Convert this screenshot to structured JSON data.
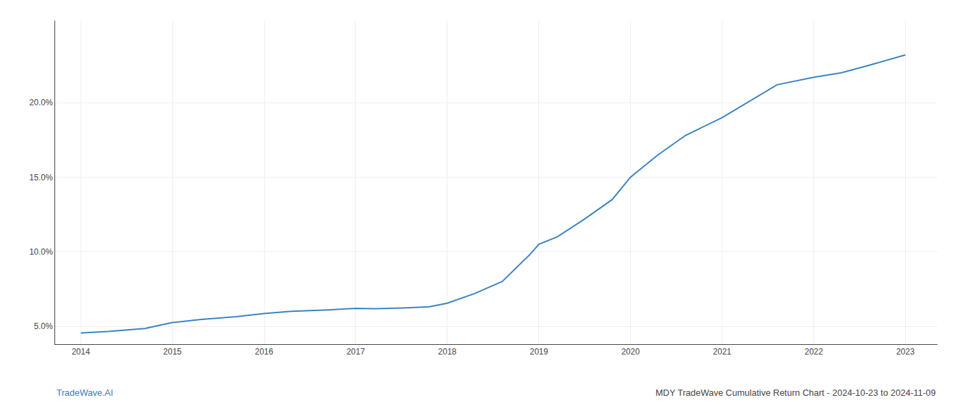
{
  "chart_data": {
    "type": "line",
    "x": [
      2014.0,
      2014.3,
      2014.7,
      2015.0,
      2015.3,
      2015.7,
      2016.0,
      2016.3,
      2016.7,
      2017.0,
      2017.2,
      2017.5,
      2017.8,
      2018.0,
      2018.3,
      2018.6,
      2018.9,
      2019.0,
      2019.2,
      2019.5,
      2019.8,
      2020.0,
      2020.3,
      2020.6,
      2021.0,
      2021.3,
      2021.6,
      2022.0,
      2022.3,
      2022.6,
      2023.0
    ],
    "values": [
      4.55,
      4.65,
      4.85,
      5.25,
      5.45,
      5.65,
      5.85,
      6.0,
      6.1,
      6.2,
      6.18,
      6.22,
      6.3,
      6.55,
      7.2,
      8.0,
      9.8,
      10.5,
      11.0,
      12.2,
      13.5,
      15.0,
      16.5,
      17.8,
      19.0,
      20.1,
      21.2,
      21.7,
      22.0,
      22.5,
      23.2
    ],
    "color": "#3a82c4",
    "xlim": [
      2013.72,
      2023.35
    ],
    "xticks": [
      2014,
      2015,
      2016,
      2017,
      2018,
      2019,
      2020,
      2021,
      2022,
      2023
    ],
    "ylim": [
      3.8,
      25.5
    ],
    "yticks": [
      {
        "value": 5.0,
        "label": "5.0%"
      },
      {
        "value": 10.0,
        "label": "10.0%"
      },
      {
        "value": 15.0,
        "label": "15.0%"
      },
      {
        "value": 20.0,
        "label": "20.0%"
      }
    ],
    "grid": true,
    "annotations": [
      {
        "text": "TradeWave.AI",
        "color": "#3a7abf"
      },
      {
        "text": "MDY TradeWave Cumulative Return Chart - 2024-10-23 to 2024-11-09",
        "color": "#444444"
      }
    ]
  }
}
